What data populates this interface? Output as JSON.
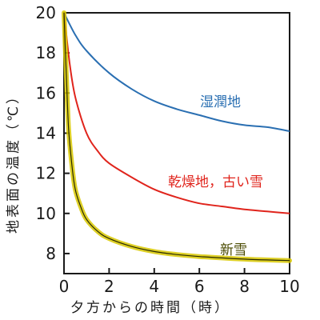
{
  "chart_data": {
    "type": "line",
    "title": "",
    "xlabel": "夕方からの時間（時）",
    "ylabel": "地表面の温度（℃）",
    "xlim": [
      0,
      10
    ],
    "ylim": [
      7,
      20
    ],
    "xticks": [
      0,
      2,
      4,
      6,
      8,
      10
    ],
    "yticks": [
      8,
      10,
      12,
      14,
      16,
      18,
      20
    ],
    "grid": false,
    "series": [
      {
        "name": "湿潤地",
        "color": "#2a6fb2",
        "x": [
          0,
          0.5,
          1,
          2,
          3,
          4,
          5,
          6,
          7,
          8,
          9,
          10
        ],
        "y": [
          20,
          18.9,
          18.1,
          17.0,
          16.2,
          15.6,
          15.2,
          14.9,
          14.6,
          14.4,
          14.3,
          14.1
        ]
      },
      {
        "name": "乾燥地，古い雪",
        "color": "#e0241c",
        "x": [
          0,
          0.25,
          0.5,
          1,
          1.5,
          2,
          3,
          4,
          5,
          6,
          7,
          8,
          9,
          10
        ],
        "y": [
          20,
          17.5,
          15.8,
          14.0,
          13.1,
          12.5,
          11.8,
          11.2,
          10.8,
          10.5,
          10.35,
          10.2,
          10.1,
          10.0
        ]
      },
      {
        "name": "新雪",
        "color": "#e8d800",
        "x": [
          0,
          0.1,
          0.2,
          0.35,
          0.5,
          0.75,
          1,
          1.5,
          2,
          3,
          4,
          5,
          6,
          7,
          8,
          9,
          10
        ],
        "y": [
          20,
          17.0,
          14.3,
          12.4,
          11.2,
          10.3,
          9.7,
          9.1,
          8.75,
          8.35,
          8.1,
          7.95,
          7.85,
          7.78,
          7.72,
          7.68,
          7.65
        ]
      }
    ]
  }
}
